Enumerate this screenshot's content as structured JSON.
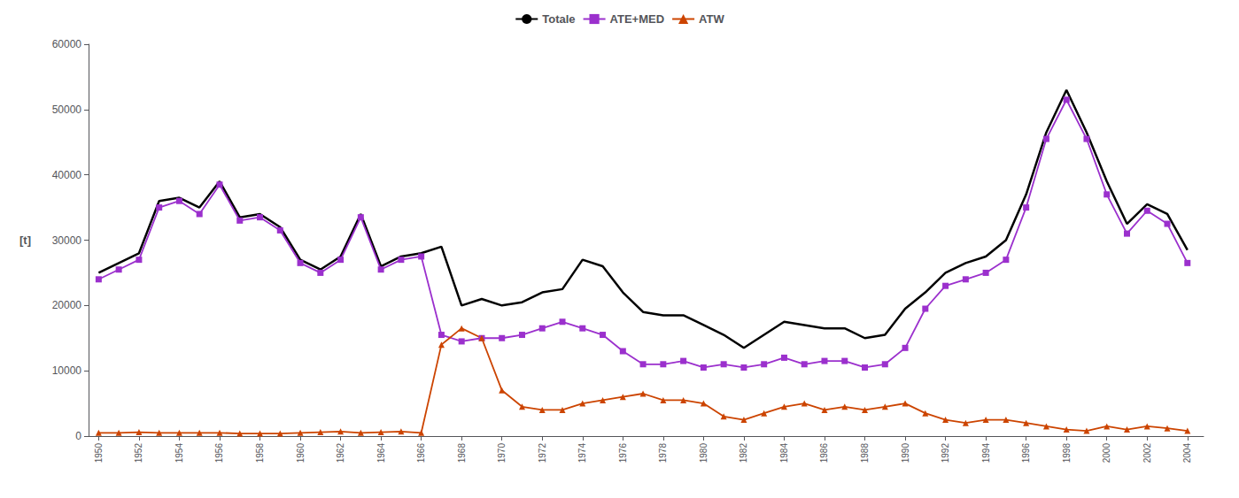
{
  "chart_data": {
    "type": "line",
    "ylabel": "[t]",
    "x": [
      1950,
      1951,
      1952,
      1953,
      1954,
      1955,
      1956,
      1957,
      1958,
      1959,
      1960,
      1961,
      1962,
      1963,
      1964,
      1965,
      1966,
      1967,
      1968,
      1969,
      1970,
      1971,
      1972,
      1973,
      1974,
      1975,
      1976,
      1977,
      1978,
      1979,
      1980,
      1981,
      1982,
      1983,
      1984,
      1985,
      1986,
      1987,
      1988,
      1989,
      1990,
      1991,
      1992,
      1993,
      1994,
      1995,
      1996,
      1997,
      1998,
      1999,
      2000,
      2001,
      2002,
      2003,
      2004
    ],
    "series": [
      {
        "name": "Totale",
        "color": "#000000",
        "marker": "none",
        "values": [
          25000,
          26500,
          28000,
          36000,
          36500,
          35000,
          39000,
          33500,
          34000,
          32000,
          27000,
          25500,
          27500,
          34000,
          26000,
          27500,
          28000,
          29000,
          20000,
          21000,
          20000,
          20500,
          22000,
          22500,
          27000,
          26000,
          22000,
          19000,
          18500,
          18500,
          17000,
          15500,
          13500,
          15500,
          17500,
          17000,
          16500,
          16500,
          15000,
          15500,
          19500,
          22000,
          25000,
          26500,
          27500,
          30000,
          37000,
          46500,
          53000,
          46500,
          39000,
          32500,
          35500,
          34000,
          28500
        ]
      },
      {
        "name": "ATE+MED",
        "color": "#9b30cd",
        "marker": "square",
        "values": [
          24000,
          25500,
          27000,
          35000,
          36000,
          34000,
          38500,
          33000,
          33500,
          31500,
          26500,
          25000,
          27000,
          33500,
          25500,
          27000,
          27500,
          15500,
          14500,
          15000,
          15000,
          15500,
          16500,
          17500,
          16500,
          15500,
          13000,
          11000,
          11000,
          11500,
          10500,
          11000,
          10500,
          11000,
          12000,
          11000,
          11500,
          11500,
          10500,
          11000,
          13500,
          19500,
          23000,
          24000,
          25000,
          27000,
          35000,
          45500,
          51500,
          45500,
          37000,
          31000,
          34500,
          32500,
          26500
        ]
      },
      {
        "name": "ATW",
        "color": "#cc4400",
        "marker": "triangle",
        "values": [
          500,
          500,
          600,
          500,
          500,
          500,
          500,
          400,
          400,
          400,
          500,
          600,
          700,
          500,
          600,
          700,
          500,
          14000,
          16500,
          15000,
          7000,
          4500,
          4000,
          4000,
          5000,
          5500,
          6000,
          6500,
          5500,
          5500,
          5000,
          3000,
          2500,
          3500,
          4500,
          5000,
          4000,
          4500,
          4000,
          4500,
          5000,
          3500,
          2500,
          2000,
          2500,
          2500,
          2000,
          1500,
          1000,
          800,
          1500,
          1000,
          1500,
          1200,
          800
        ]
      }
    ],
    "xlim": [
      1949.5,
      2004.8
    ],
    "xticks": [
      1950,
      1952,
      1954,
      1956,
      1958,
      1960,
      1962,
      1964,
      1966,
      1968,
      1970,
      1972,
      1974,
      1976,
      1978,
      1980,
      1982,
      1984,
      1986,
      1988,
      1990,
      1992,
      1994,
      1996,
      1998,
      2000,
      2002,
      2004
    ],
    "ylim": [
      0,
      60000
    ],
    "yticks": [
      0,
      10000,
      20000,
      30000,
      40000,
      50000,
      60000
    ],
    "grid": false,
    "legend": "upper center"
  }
}
